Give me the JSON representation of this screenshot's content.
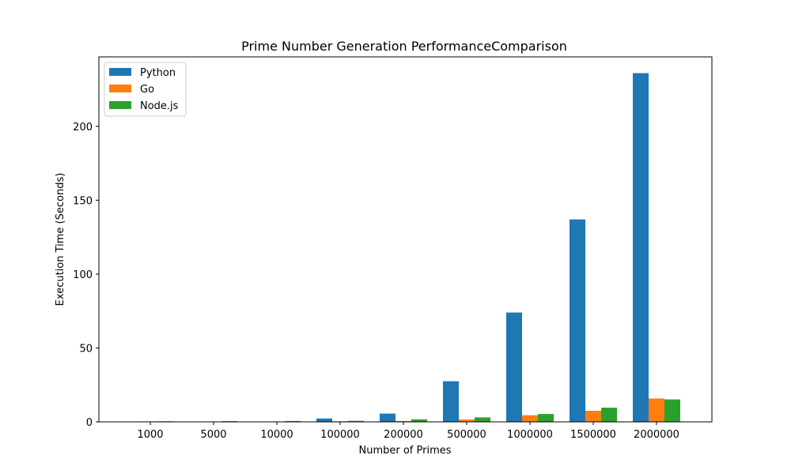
{
  "chart_data": {
    "type": "bar",
    "title": "Prime Number Generation PerformanceComparison",
    "xlabel": "Number of Primes",
    "ylabel": "Execution Time (Seconds)",
    "categories": [
      "1000",
      "5000",
      "10000",
      "100000",
      "200000",
      "500000",
      "1000000",
      "1500000",
      "2000000"
    ],
    "series": [
      {
        "name": "Python",
        "color": "#1f77b4",
        "values": [
          0.05,
          0.1,
          0.2,
          2.3,
          5.6,
          27.5,
          74,
          137,
          236
        ]
      },
      {
        "name": "Go",
        "color": "#ff7f0e",
        "values": [
          0.3,
          0.2,
          0.2,
          0.4,
          0.6,
          1.6,
          4.5,
          7.5,
          15.8
        ]
      },
      {
        "name": "Node.js",
        "color": "#2ca02c",
        "values": [
          0.4,
          0.5,
          0.6,
          0.7,
          1.7,
          3.0,
          5.3,
          9.6,
          15.2
        ]
      }
    ],
    "yticks": [
      0,
      50,
      100,
      150,
      200
    ],
    "ylim": [
      0,
      247
    ],
    "grid": false,
    "legend_position": "top-left"
  }
}
